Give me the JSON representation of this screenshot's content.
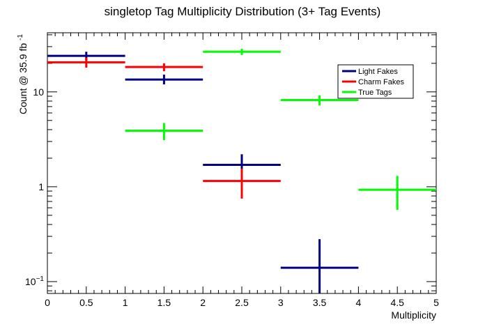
{
  "chart_data": {
    "type": "scatter",
    "title": "singletop Tag Multiplicity Distribution (3+ Tag Events)",
    "xlabel": "Multiplicity",
    "ylabel": {
      "text": "Count @ 35.9 fb",
      "superscript": "-1"
    },
    "xlim": [
      0,
      5
    ],
    "ylim": [
      0.075,
      42
    ],
    "yscale": "log",
    "x_ticks": [
      "0",
      "0.5",
      "1",
      "1.5",
      "2",
      "2.5",
      "3",
      "3.5",
      "4",
      "4.5",
      "5"
    ],
    "y_ticks": [
      {
        "value": 0.1,
        "base": "10",
        "exp": "−1"
      },
      {
        "value": 1,
        "base": "1",
        "exp": ""
      },
      {
        "value": 10,
        "base": "10",
        "exp": ""
      }
    ],
    "grid": false,
    "legend_position": "top-right",
    "series": [
      {
        "name": "Light Fakes",
        "color": "#000080",
        "points": [
          {
            "x": 0.5,
            "xerr": 0.5,
            "y": 24.0,
            "ylo": 21.5,
            "yhi": 26.5
          },
          {
            "x": 1.5,
            "xerr": 0.5,
            "y": 13.5,
            "ylo": 12.0,
            "yhi": 15.2
          },
          {
            "x": 2.5,
            "xerr": 0.5,
            "y": 1.7,
            "ylo": 1.2,
            "yhi": 2.2
          },
          {
            "x": 3.5,
            "xerr": 0.5,
            "y": 0.14,
            "ylo": 0.07,
            "yhi": 0.28
          }
        ]
      },
      {
        "name": "Charm Fakes",
        "color": "#ff0000",
        "points": [
          {
            "x": 0.5,
            "xerr": 0.5,
            "y": 20.5,
            "ylo": 18.0,
            "yhi": 23.0
          },
          {
            "x": 1.5,
            "xerr": 0.5,
            "y": 18.3,
            "ylo": 16.5,
            "yhi": 20.0
          },
          {
            "x": 2.5,
            "xerr": 0.5,
            "y": 1.15,
            "ylo": 0.75,
            "yhi": 1.55
          }
        ]
      },
      {
        "name": "True Tags",
        "color": "#00ff00",
        "points": [
          {
            "x": 1.5,
            "xerr": 0.5,
            "y": 3.9,
            "ylo": 3.1,
            "yhi": 4.7
          },
          {
            "x": 2.5,
            "xerr": 0.5,
            "y": 26.5,
            "ylo": 24.5,
            "yhi": 28.5
          },
          {
            "x": 3.5,
            "xerr": 0.5,
            "y": 8.2,
            "ylo": 7.2,
            "yhi": 9.2
          },
          {
            "x": 4.5,
            "xerr": 0.5,
            "y": 0.93,
            "ylo": 0.57,
            "yhi": 1.3
          }
        ]
      }
    ]
  }
}
